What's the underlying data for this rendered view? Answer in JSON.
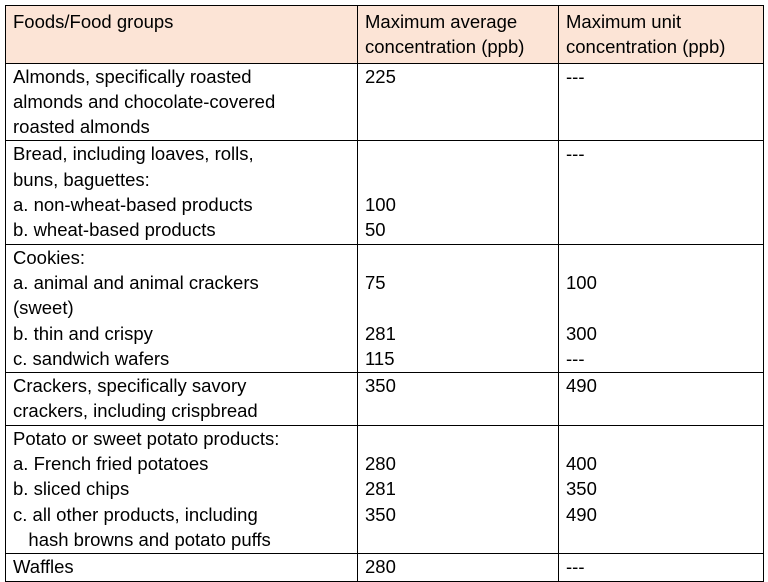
{
  "table": {
    "header": [
      [
        "Foods/Food groups"
      ],
      [
        "Maximum average",
        "concentration (ppb)"
      ],
      [
        "Maximum unit",
        "concentration (ppb)"
      ]
    ],
    "rows": [
      [
        [
          "Almonds, specifically roasted",
          "225",
          "---"
        ],
        [
          "almonds and chocolate-covered",
          null,
          null
        ],
        [
          "roasted almonds",
          null,
          null
        ]
      ],
      [
        [
          "Bread, including loaves, rolls,",
          null,
          "---"
        ],
        [
          "buns, baguettes:",
          null,
          null
        ],
        [
          "a. non-wheat-based products",
          "100",
          null
        ],
        [
          "b. wheat-based products",
          "50",
          null
        ]
      ],
      [
        [
          "Cookies:",
          null,
          null
        ],
        [
          "a. animal and animal crackers",
          "75",
          "100"
        ],
        [
          "(sweet)",
          null,
          null
        ],
        [
          "b. thin and crispy",
          "281",
          "300"
        ],
        [
          "c. sandwich wafers",
          "115",
          "---"
        ]
      ],
      [
        [
          "Crackers, specifically savory",
          "350",
          "490"
        ],
        [
          "crackers, including crispbread",
          null,
          null
        ]
      ],
      [
        [
          "Potato or sweet potato products:",
          null,
          null
        ],
        [
          "a. French fried potatoes",
          "280",
          "400"
        ],
        [
          "b. sliced chips",
          "281",
          "350"
        ],
        [
          "c. all other products, including",
          "350",
          "490"
        ],
        [
          "   hash browns and potato puffs",
          null,
          null
        ]
      ],
      [
        [
          "Waffles",
          "280",
          "---"
        ]
      ]
    ]
  }
}
